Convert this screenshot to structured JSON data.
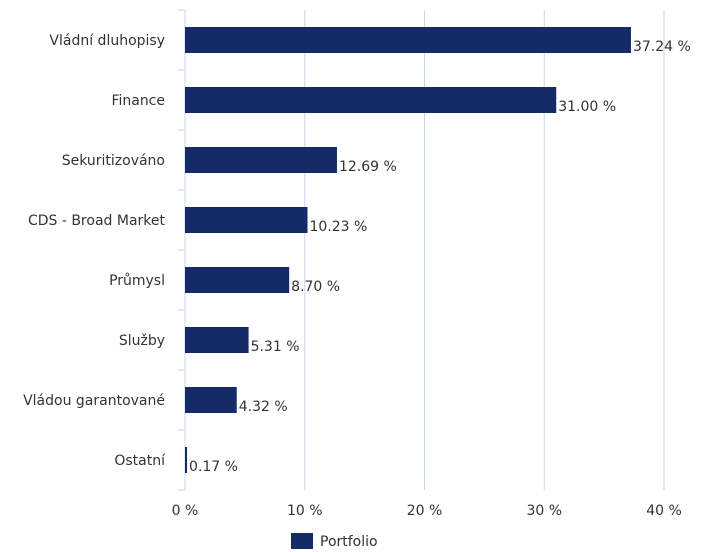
{
  "chart_data": {
    "type": "hbar",
    "categories": [
      "Vládní dluhopisy",
      "Finance",
      "Sekuritizováno",
      "CDS - Broad Market",
      "Průmysl",
      "Služby",
      "Vládou garantované",
      "Ostatní"
    ],
    "series": [
      {
        "name": "Portfolio",
        "color": "#152b68",
        "values": [
          37.24,
          31.0,
          12.69,
          10.23,
          8.7,
          5.31,
          4.32,
          0.17
        ],
        "value_labels": [
          "37.24 %",
          "31.00 %",
          "12.69 %",
          "10.23 %",
          "8.70 %",
          "5.31 %",
          "4.32 %",
          "0.17 %"
        ]
      }
    ],
    "xlim": [
      0,
      40
    ],
    "xticks": [
      {
        "value": 0,
        "label": "0 %"
      },
      {
        "value": 10,
        "label": "10 %"
      },
      {
        "value": 20,
        "label": "20 %"
      },
      {
        "value": 30,
        "label": "30 %"
      },
      {
        "value": 40,
        "label": "40 %"
      }
    ],
    "grid": true,
    "legend": "bottom"
  }
}
